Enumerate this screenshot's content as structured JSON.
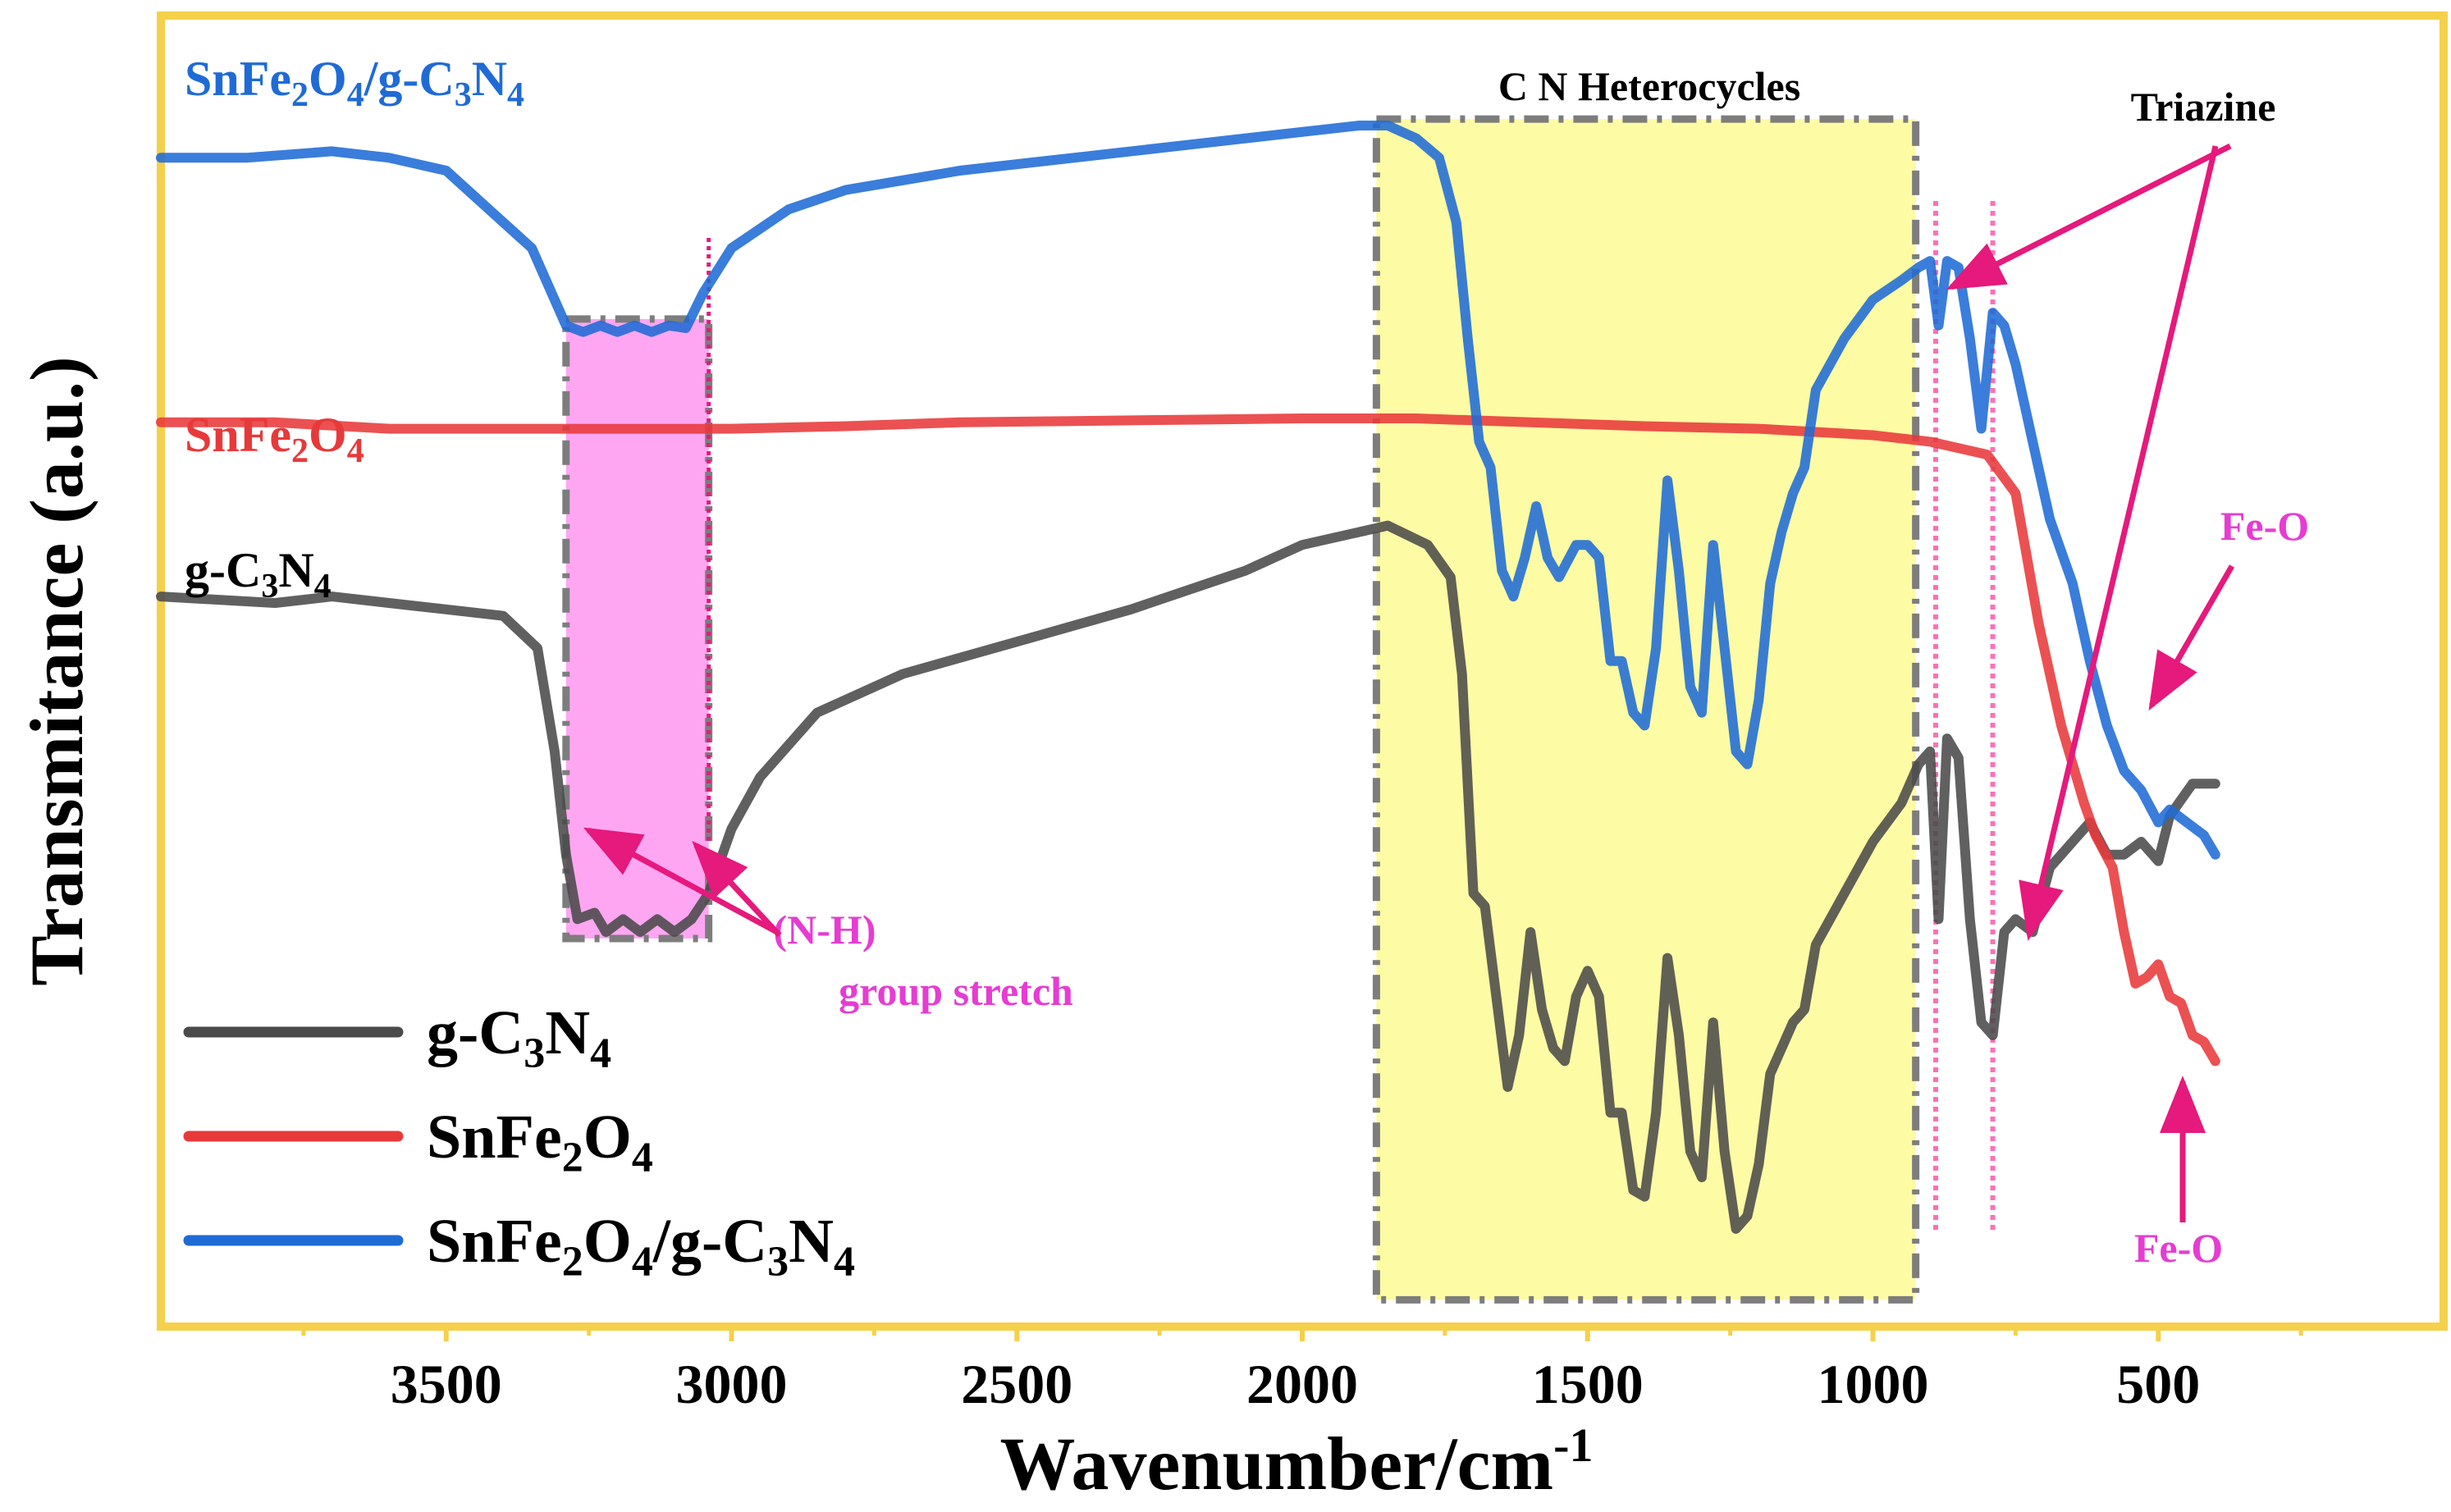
{
  "chart_data": {
    "type": "line",
    "title": "",
    "xlabel": "Wavenumber/cm",
    "xlabel_sup": "-1",
    "ylabel": "Transmitance (a.u.)",
    "xlim": [
      4000,
      0
    ],
    "x_ticks": [
      3500,
      3000,
      2500,
      2000,
      1500,
      1000,
      500
    ],
    "x_tick_labels": [
      "3500",
      "3000",
      "2500",
      "2000",
      "1500",
      "1000",
      "500"
    ],
    "ylim": [
      0,
      10
    ],
    "grid": false,
    "legend_position": "bottom-left",
    "series": [
      {
        "key": "g",
        "name": "g-C3N4",
        "color": "#4a4a4a",
        "label_parts": [
          [
            "g-C",
            ""
          ],
          [
            "3",
            "sub"
          ],
          [
            "N",
            ""
          ],
          [
            "4",
            "sub"
          ]
        ],
        "points": [
          [
            4000,
            5.6
          ],
          [
            3800,
            5.55
          ],
          [
            3700,
            5.6
          ],
          [
            3600,
            5.55
          ],
          [
            3500,
            5.5
          ],
          [
            3400,
            5.45
          ],
          [
            3340,
            5.2
          ],
          [
            3310,
            4.4
          ],
          [
            3290,
            3.6
          ],
          [
            3270,
            3.1
          ],
          [
            3240,
            3.15
          ],
          [
            3220,
            3.0
          ],
          [
            3190,
            3.1
          ],
          [
            3160,
            3.0
          ],
          [
            3130,
            3.1
          ],
          [
            3100,
            3.0
          ],
          [
            3070,
            3.1
          ],
          [
            3040,
            3.3
          ],
          [
            3000,
            3.8
          ],
          [
            2950,
            4.2
          ],
          [
            2850,
            4.7
          ],
          [
            2700,
            5.0
          ],
          [
            2500,
            5.25
          ],
          [
            2300,
            5.5
          ],
          [
            2100,
            5.8
          ],
          [
            2000,
            6.0
          ],
          [
            1900,
            6.1
          ],
          [
            1850,
            6.15
          ],
          [
            1780,
            6.0
          ],
          [
            1740,
            5.75
          ],
          [
            1720,
            5.0
          ],
          [
            1700,
            3.3
          ],
          [
            1680,
            3.2
          ],
          [
            1660,
            2.5
          ],
          [
            1640,
            1.8
          ],
          [
            1620,
            2.2
          ],
          [
            1600,
            3.0
          ],
          [
            1580,
            2.4
          ],
          [
            1560,
            2.1
          ],
          [
            1540,
            2.0
          ],
          [
            1520,
            2.5
          ],
          [
            1500,
            2.7
          ],
          [
            1480,
            2.5
          ],
          [
            1460,
            1.6
          ],
          [
            1440,
            1.6
          ],
          [
            1420,
            1.0
          ],
          [
            1400,
            0.95
          ],
          [
            1380,
            1.6
          ],
          [
            1360,
            2.8
          ],
          [
            1340,
            2.2
          ],
          [
            1320,
            1.3
          ],
          [
            1300,
            1.1
          ],
          [
            1280,
            2.3
          ],
          [
            1260,
            1.3
          ],
          [
            1240,
            0.7
          ],
          [
            1220,
            0.8
          ],
          [
            1200,
            1.2
          ],
          [
            1180,
            1.9
          ],
          [
            1160,
            2.1
          ],
          [
            1140,
            2.3
          ],
          [
            1120,
            2.4
          ],
          [
            1100,
            2.9
          ],
          [
            1050,
            3.3
          ],
          [
            1000,
            3.7
          ],
          [
            950,
            4.0
          ],
          [
            920,
            4.3
          ],
          [
            900,
            4.4
          ],
          [
            885,
            3.1
          ],
          [
            870,
            4.5
          ],
          [
            850,
            4.35
          ],
          [
            830,
            3.1
          ],
          [
            810,
            2.3
          ],
          [
            790,
            2.2
          ],
          [
            770,
            3.0
          ],
          [
            750,
            3.1
          ],
          [
            720,
            3.0
          ],
          [
            690,
            3.5
          ],
          [
            650,
            3.7
          ],
          [
            620,
            3.85
          ],
          [
            590,
            3.6
          ],
          [
            560,
            3.6
          ],
          [
            530,
            3.7
          ],
          [
            500,
            3.55
          ],
          [
            480,
            3.9
          ],
          [
            440,
            4.15
          ],
          [
            400,
            4.15
          ]
        ]
      },
      {
        "key": "sn",
        "name": "SnFe2O4",
        "color": "#e8393a",
        "label_parts": [
          [
            "SnFe",
            ""
          ],
          [
            "2",
            "sub"
          ],
          [
            "O",
            ""
          ],
          [
            "4",
            "sub"
          ]
        ],
        "points": [
          [
            4000,
            6.95
          ],
          [
            3800,
            6.95
          ],
          [
            3600,
            6.9
          ],
          [
            3400,
            6.9
          ],
          [
            3200,
            6.9
          ],
          [
            3000,
            6.9
          ],
          [
            2800,
            6.92
          ],
          [
            2600,
            6.95
          ],
          [
            2400,
            6.96
          ],
          [
            2200,
            6.97
          ],
          [
            2000,
            6.98
          ],
          [
            1800,
            6.98
          ],
          [
            1600,
            6.95
          ],
          [
            1400,
            6.92
          ],
          [
            1200,
            6.9
          ],
          [
            1000,
            6.85
          ],
          [
            900,
            6.8
          ],
          [
            800,
            6.7
          ],
          [
            750,
            6.4
          ],
          [
            730,
            5.9
          ],
          [
            710,
            5.4
          ],
          [
            690,
            5.0
          ],
          [
            670,
            4.6
          ],
          [
            650,
            4.3
          ],
          [
            630,
            4.0
          ],
          [
            610,
            3.75
          ],
          [
            580,
            3.5
          ],
          [
            560,
            3.0
          ],
          [
            540,
            2.6
          ],
          [
            520,
            2.65
          ],
          [
            500,
            2.75
          ],
          [
            480,
            2.5
          ],
          [
            460,
            2.45
          ],
          [
            440,
            2.2
          ],
          [
            420,
            2.15
          ],
          [
            400,
            2.0
          ]
        ]
      },
      {
        "key": "comp",
        "name": "SnFe2O4/g-C3N4",
        "color": "#1f6bd6",
        "label_parts": [
          [
            "SnFe",
            ""
          ],
          [
            "2",
            "sub"
          ],
          [
            "O",
            ""
          ],
          [
            "4",
            "sub"
          ],
          [
            "/g-C",
            ""
          ],
          [
            "3",
            "sub"
          ],
          [
            "N",
            ""
          ],
          [
            "4",
            "sub"
          ]
        ],
        "points": [
          [
            4000,
            9.0
          ],
          [
            3850,
            9.0
          ],
          [
            3700,
            9.05
          ],
          [
            3600,
            9.0
          ],
          [
            3500,
            8.9
          ],
          [
            3450,
            8.7
          ],
          [
            3400,
            8.5
          ],
          [
            3350,
            8.3
          ],
          [
            3320,
            8.0
          ],
          [
            3290,
            7.7
          ],
          [
            3260,
            7.65
          ],
          [
            3230,
            7.7
          ],
          [
            3200,
            7.65
          ],
          [
            3170,
            7.7
          ],
          [
            3140,
            7.65
          ],
          [
            3110,
            7.7
          ],
          [
            3080,
            7.68
          ],
          [
            3050,
            7.95
          ],
          [
            3000,
            8.3
          ],
          [
            2900,
            8.6
          ],
          [
            2800,
            8.75
          ],
          [
            2600,
            8.9
          ],
          [
            2400,
            9.0
          ],
          [
            2200,
            9.1
          ],
          [
            2000,
            9.2
          ],
          [
            1900,
            9.25
          ],
          [
            1850,
            9.25
          ],
          [
            1800,
            9.15
          ],
          [
            1760,
            9.0
          ],
          [
            1730,
            8.5
          ],
          [
            1710,
            7.6
          ],
          [
            1690,
            6.8
          ],
          [
            1670,
            6.6
          ],
          [
            1650,
            5.8
          ],
          [
            1630,
            5.6
          ],
          [
            1610,
            5.9
          ],
          [
            1590,
            6.3
          ],
          [
            1570,
            5.9
          ],
          [
            1550,
            5.75
          ],
          [
            1520,
            6.0
          ],
          [
            1500,
            6.0
          ],
          [
            1480,
            5.9
          ],
          [
            1460,
            5.1
          ],
          [
            1440,
            5.1
          ],
          [
            1420,
            4.7
          ],
          [
            1400,
            4.6
          ],
          [
            1380,
            5.2
          ],
          [
            1360,
            6.5
          ],
          [
            1340,
            5.8
          ],
          [
            1320,
            4.9
          ],
          [
            1300,
            4.7
          ],
          [
            1280,
            6.0
          ],
          [
            1260,
            5.2
          ],
          [
            1240,
            4.4
          ],
          [
            1220,
            4.3
          ],
          [
            1200,
            4.8
          ],
          [
            1180,
            5.7
          ],
          [
            1160,
            6.1
          ],
          [
            1140,
            6.4
          ],
          [
            1120,
            6.6
          ],
          [
            1100,
            7.2
          ],
          [
            1050,
            7.6
          ],
          [
            1000,
            7.9
          ],
          [
            950,
            8.05
          ],
          [
            920,
            8.15
          ],
          [
            900,
            8.2
          ],
          [
            885,
            7.7
          ],
          [
            870,
            8.2
          ],
          [
            850,
            8.15
          ],
          [
            830,
            7.6
          ],
          [
            810,
            6.9
          ],
          [
            790,
            7.8
          ],
          [
            770,
            7.7
          ],
          [
            750,
            7.4
          ],
          [
            720,
            6.8
          ],
          [
            690,
            6.2
          ],
          [
            650,
            5.7
          ],
          [
            620,
            5.1
          ],
          [
            590,
            4.6
          ],
          [
            560,
            4.25
          ],
          [
            530,
            4.1
          ],
          [
            500,
            3.85
          ],
          [
            480,
            3.95
          ],
          [
            450,
            3.85
          ],
          [
            420,
            3.75
          ],
          [
            400,
            3.6
          ]
        ]
      }
    ],
    "highlight_regions": [
      {
        "name": "N-H band",
        "x_range": [
          3290,
          3040
        ],
        "y_range": [
          2.95,
          7.75
        ],
        "fill": "#ff9cf2"
      },
      {
        "name": "C N heterocycles band",
        "x_range": [
          1870,
          925
        ],
        "y_range": [
          0.15,
          9.3
        ],
        "fill": "#fdfb9a"
      }
    ],
    "reference_lines": [
      890,
      790
    ],
    "annotations": {
      "heterocycles": "C N Heterocycles",
      "triazine": "Triazine",
      "nh_line1": "(N-H)",
      "nh_line2": "group stretch",
      "feo_top": "Fe-O",
      "feo_bottom": "Fe-O"
    },
    "annotation_colors": {
      "arrow": "#e6197c",
      "nh_text": "#e63cd2",
      "feo_text": "#e63cd2",
      "frame": "#f5d04a"
    }
  }
}
